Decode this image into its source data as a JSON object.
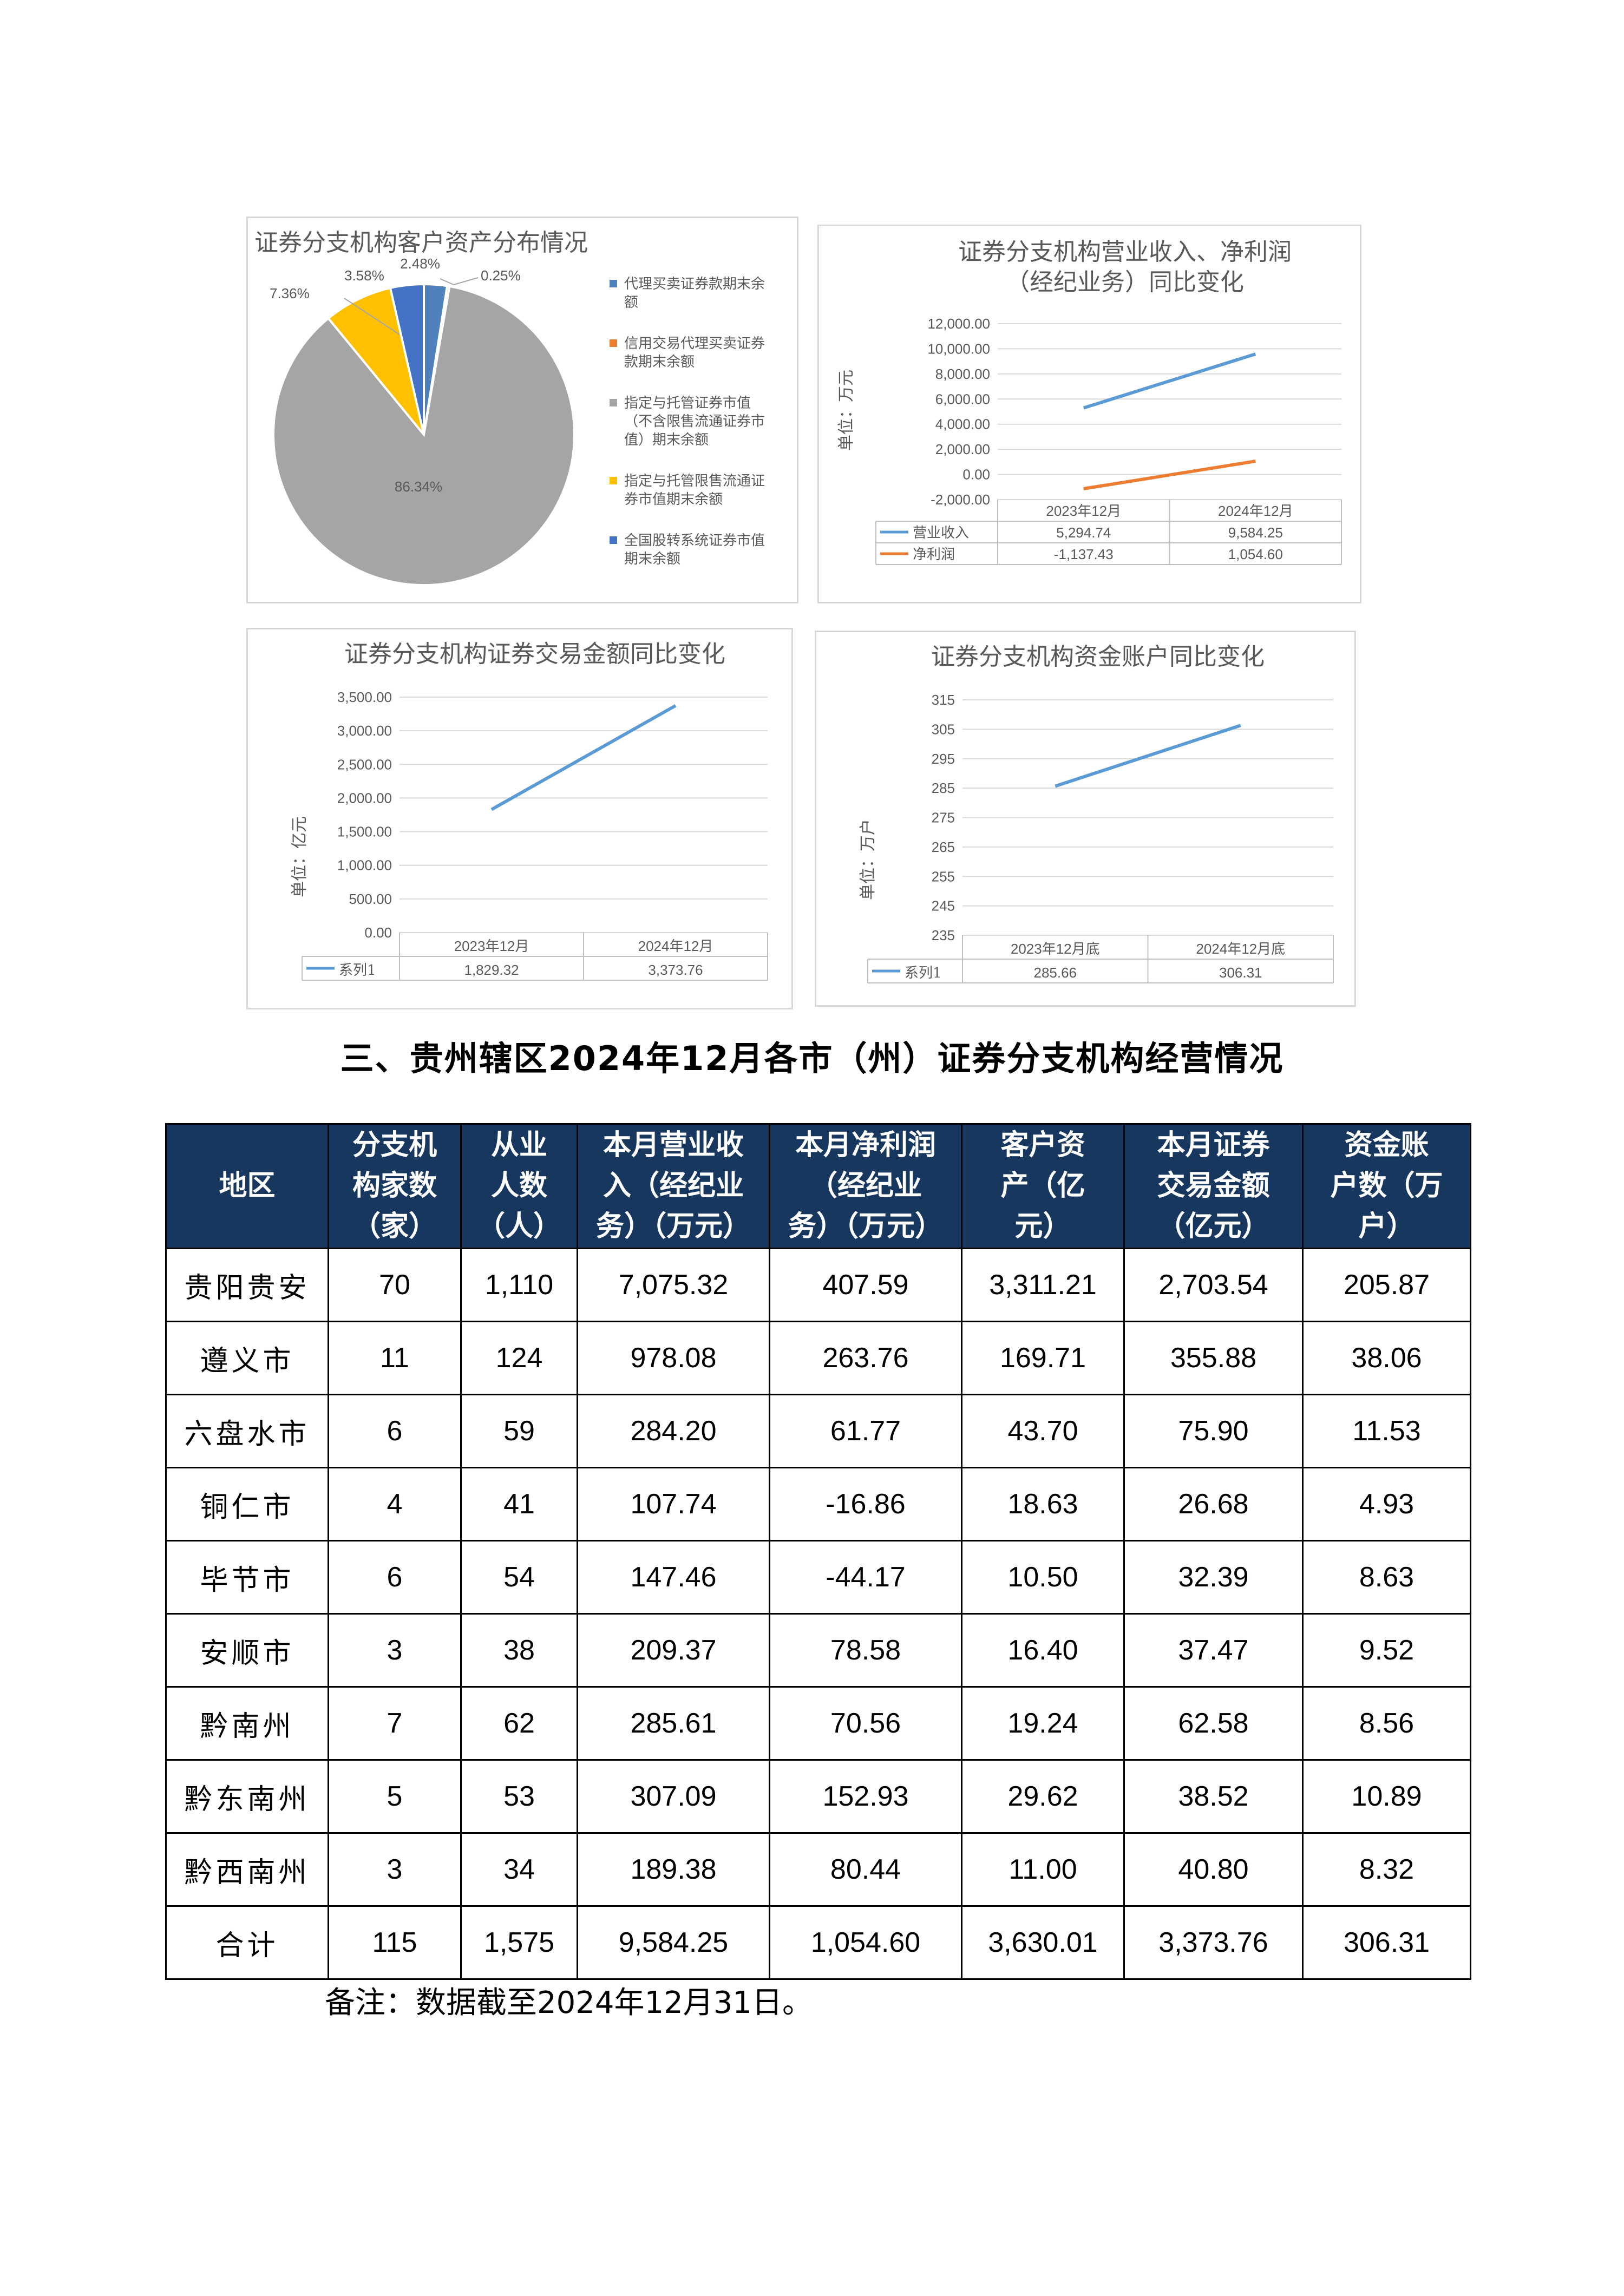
{
  "charts": {
    "pie": {
      "title": "证券分支机构客户资产分布情况",
      "legend": [
        {
          "label": "代理买卖证券款期末余额",
          "lines": [
            "代理买卖证券款期末余",
            "额"
          ],
          "color": "#4f81bd"
        },
        {
          "label": "信用交易代理买卖证券款期末余额",
          "lines": [
            "信用交易代理买卖证券",
            "款期末余额"
          ],
          "color": "#ed7d31"
        },
        {
          "label": "指定与托管证券市值（不含限售流通证券市值）期末余额",
          "lines": [
            "指定与托管证券市值",
            "（不含限售流通证券市",
            "值）期末余额"
          ],
          "color": "#a5a5a5"
        },
        {
          "label": "指定与托管限售流通证券市值期末余额",
          "lines": [
            "指定与托管限售流通证",
            "券市值期末余额"
          ],
          "color": "#ffc000"
        },
        {
          "label": "全国股转系统证券市值期末余额",
          "lines": [
            "全国股转系统证券市值",
            "期末余额"
          ],
          "color": "#4472c4"
        }
      ]
    },
    "revenue": {
      "title_lines": [
        "证券分支机构营业收入、净利润",
        "（经纪业务）同比变化"
      ],
      "unit_label": "单位：万元"
    },
    "trading": {
      "title": "证券分支机构证券交易金额同比变化",
      "unit_label": "单位：亿元"
    },
    "accounts": {
      "title": "证券分支机构资金账户同比变化",
      "unit_label": "单位：万户"
    }
  },
  "chart_data": [
    {
      "type": "pie",
      "title": "证券分支机构客户资产分布情况",
      "categories": [
        "代理买卖证券款期末余额",
        "信用交易代理买卖证券款期末余额",
        "指定与托管证券市值（不含限售流通证券市值）期末余额",
        "指定与托管限售流通证券市值期末余额",
        "全国股转系统证券市值期末余额"
      ],
      "values": [
        2.48,
        0.25,
        86.34,
        7.36,
        3.58
      ],
      "value_labels": [
        "2.48%",
        "0.25%",
        "86.34%",
        "7.36%",
        "3.58%"
      ],
      "legend": "right"
    },
    {
      "type": "line",
      "title": "证券分支机构营业收入、净利润（经纪业务）同比变化",
      "ylabel": "单位：万元",
      "categories": [
        "2023年12月",
        "2024年12月"
      ],
      "series": [
        {
          "name": "营业收入",
          "values": [
            5294.74,
            9584.25
          ],
          "labels": [
            "5,294.74",
            "9,584.25"
          ],
          "color": "#5b9bd5"
        },
        {
          "name": "净利润",
          "values": [
            -1137.43,
            1054.6
          ],
          "labels": [
            "-1,137.43",
            "1,054.60"
          ],
          "color": "#ed7d31"
        }
      ],
      "ylim": [
        -2000,
        12000
      ],
      "yticks": [
        "-2,000.00",
        "0.00",
        "2,000.00",
        "4,000.00",
        "6,000.00",
        "8,000.00",
        "10,000.00",
        "12,000.00"
      ],
      "grid": true,
      "legend": "data-table"
    },
    {
      "type": "line",
      "title": "证券分支机构证券交易金额同比变化",
      "ylabel": "单位：亿元",
      "categories": [
        "2023年12月",
        "2024年12月"
      ],
      "series": [
        {
          "name": "系列1",
          "values": [
            1829.32,
            3373.76
          ],
          "labels": [
            "1,829.32",
            "3,373.76"
          ],
          "color": "#5b9bd5"
        }
      ],
      "ylim": [
        0,
        3500
      ],
      "yticks": [
        "0.00",
        "500.00",
        "1,000.00",
        "1,500.00",
        "2,000.00",
        "2,500.00",
        "3,000.00",
        "3,500.00"
      ],
      "grid": true,
      "legend": "data-table"
    },
    {
      "type": "line",
      "title": "证券分支机构资金账户同比变化",
      "ylabel": "单位：万户",
      "categories": [
        "2023年12月底",
        "2024年12月底"
      ],
      "series": [
        {
          "name": "系列1",
          "values": [
            285.66,
            306.31
          ],
          "labels": [
            "285.66",
            "306.31"
          ],
          "color": "#5b9bd5"
        }
      ],
      "ylim": [
        235,
        315
      ],
      "yticks": [
        "235",
        "245",
        "255",
        "265",
        "275",
        "285",
        "295",
        "305",
        "315"
      ],
      "grid": true,
      "legend": "data-table"
    }
  ],
  "section_title": "三、贵州辖区2024年12月各市（州）证券分支机构经营情况",
  "table": {
    "headers": [
      "地区",
      "分支机构家数（家）",
      "从业人数（人）",
      "本月营业收入（经纪业务）（万元）",
      "本月净利润（经纪业务）（万元）",
      "客户资产（亿元）",
      "本月证券交易金额（亿元）",
      "资金账户数（万户）"
    ],
    "header_lines": [
      [
        "地区"
      ],
      [
        "分支机",
        "构家数",
        "（家）"
      ],
      [
        "从业",
        "人数",
        "（人）"
      ],
      [
        "本月营业收",
        "入（经纪业",
        "务）（万元）"
      ],
      [
        "本月净利润",
        "（经纪业",
        "务）（万元）"
      ],
      [
        "客户资",
        "产（亿",
        "元）"
      ],
      [
        "本月证券",
        "交易金额",
        "（亿元）"
      ],
      [
        "资金账",
        "户数（万",
        "户）"
      ]
    ],
    "rows": [
      [
        "贵阳贵安",
        "70",
        "1,110",
        "7,075.32",
        "407.59",
        "3,311.21",
        "2,703.54",
        "205.87"
      ],
      [
        "遵义市",
        "11",
        "124",
        "978.08",
        "263.76",
        "169.71",
        "355.88",
        "38.06"
      ],
      [
        "六盘水市",
        "6",
        "59",
        "284.20",
        "61.77",
        "43.70",
        "75.90",
        "11.53"
      ],
      [
        "铜仁市",
        "4",
        "41",
        "107.74",
        "-16.86",
        "18.63",
        "26.68",
        "4.93"
      ],
      [
        "毕节市",
        "6",
        "54",
        "147.46",
        "-44.17",
        "10.50",
        "32.39",
        "8.63"
      ],
      [
        "安顺市",
        "3",
        "38",
        "209.37",
        "78.58",
        "16.40",
        "37.47",
        "9.52"
      ],
      [
        "黔南州",
        "7",
        "62",
        "285.61",
        "70.56",
        "19.24",
        "62.58",
        "8.56"
      ],
      [
        "黔东南州",
        "5",
        "53",
        "307.09",
        "152.93",
        "29.62",
        "38.52",
        "10.89"
      ],
      [
        "黔西南州",
        "3",
        "34",
        "189.38",
        "80.44",
        "11.00",
        "40.80",
        "8.32"
      ],
      [
        "合计",
        "115",
        "1,575",
        "9,584.25",
        "1,054.60",
        "3,630.01",
        "3,373.76",
        "306.31"
      ]
    ]
  },
  "note": "备注：数据截至2024年12月31日。"
}
